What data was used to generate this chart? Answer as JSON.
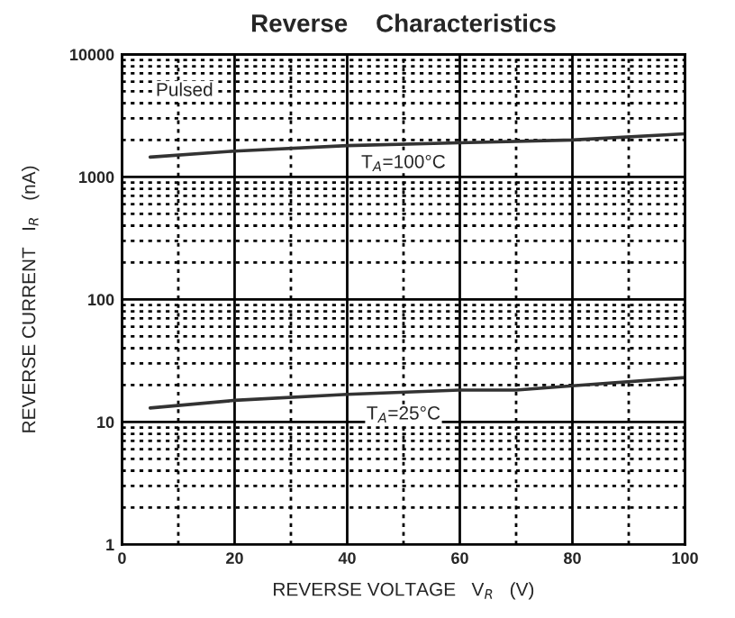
{
  "chart_data": {
    "type": "line",
    "title": "Reverse    Characteristics",
    "xlabel": "REVERSE VOLTAGE   V$_{R}$   (V)",
    "ylabel": "REVERSE CURRENT   I$_{R}$   (nA)",
    "log": "y",
    "xlim": [
      0,
      100
    ],
    "ylim": [
      1,
      10000
    ],
    "xticks": [
      0,
      20,
      40,
      60,
      80,
      100
    ],
    "yticks": [
      1,
      10,
      100,
      1000,
      10000
    ],
    "grid": true,
    "legend": false,
    "line_style": "solid",
    "marker": "none",
    "series": [
      {
        "color": "#333333",
        "x": [
          5,
          20,
          40,
          60,
          80,
          100
        ],
        "values": [
          1450,
          1625,
          1800,
          1900,
          2000,
          2250
        ]
      },
      {
        "color": "#333333",
        "x": [
          5,
          20,
          40,
          60,
          70,
          80,
          100
        ],
        "values": [
          13,
          15,
          16.8,
          18.2,
          18.2,
          19.7,
          23
        ]
      }
    ],
    "annotations": [
      "Pulsed",
      "T$_{A}$=100°C",
      "T$_{A}$=25°C"
    ]
  }
}
